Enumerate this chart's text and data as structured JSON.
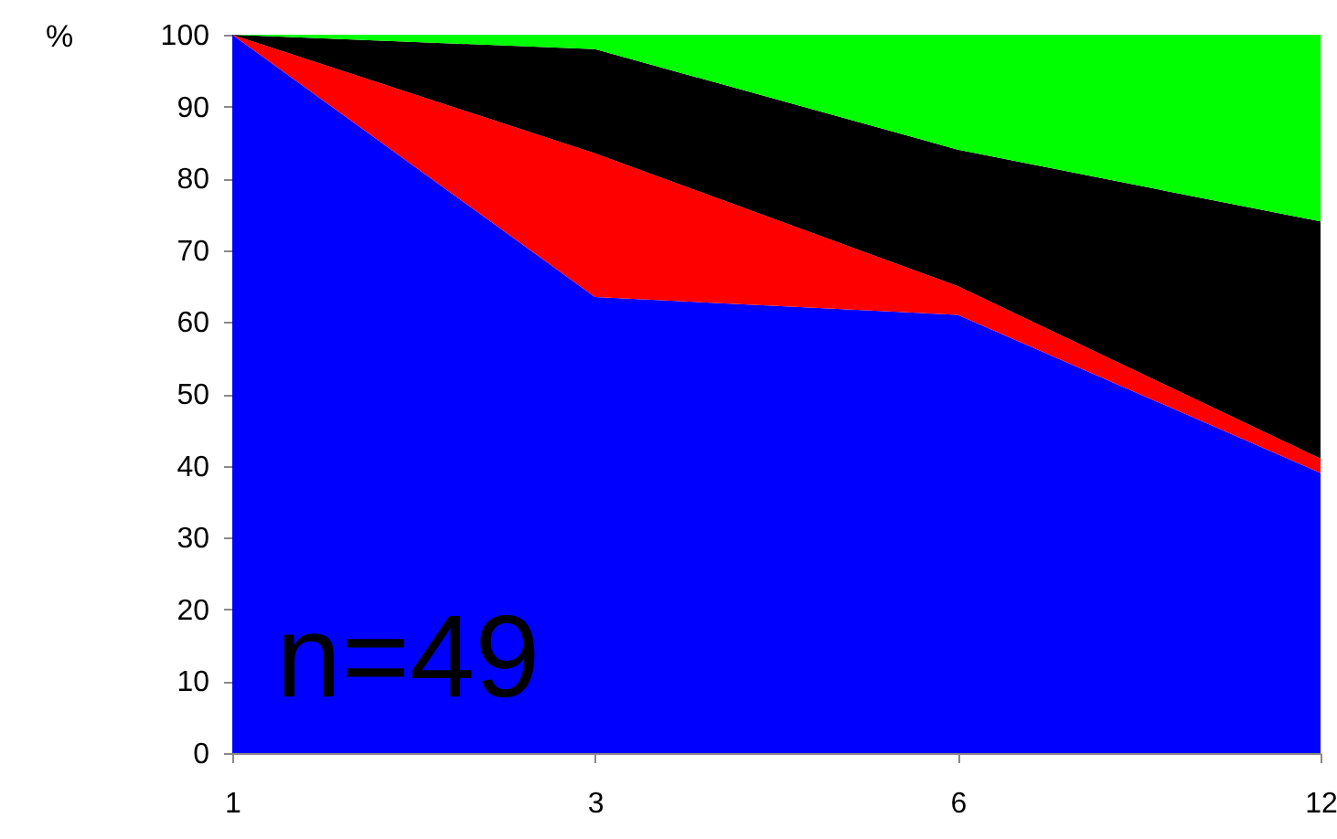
{
  "chart_data": {
    "type": "area",
    "stacked": true,
    "ylabel": "%",
    "categories": [
      "1",
      "3",
      "6",
      "12"
    ],
    "series": [
      {
        "color": "#0000ff",
        "values": [
          100,
          63.5,
          61,
          39
        ]
      },
      {
        "color": "#ff0000",
        "values": [
          0,
          20,
          4,
          2
        ]
      },
      {
        "color": "#000000",
        "values": [
          0,
          14.5,
          19,
          33
        ]
      },
      {
        "color": "#00ff00",
        "values": [
          0,
          2,
          16,
          26
        ]
      }
    ],
    "ylim": [
      0,
      100
    ],
    "yticks": [
      0,
      10,
      20,
      30,
      40,
      50,
      60,
      70,
      80,
      90,
      100
    ],
    "annotations": [
      "n=49"
    ]
  }
}
